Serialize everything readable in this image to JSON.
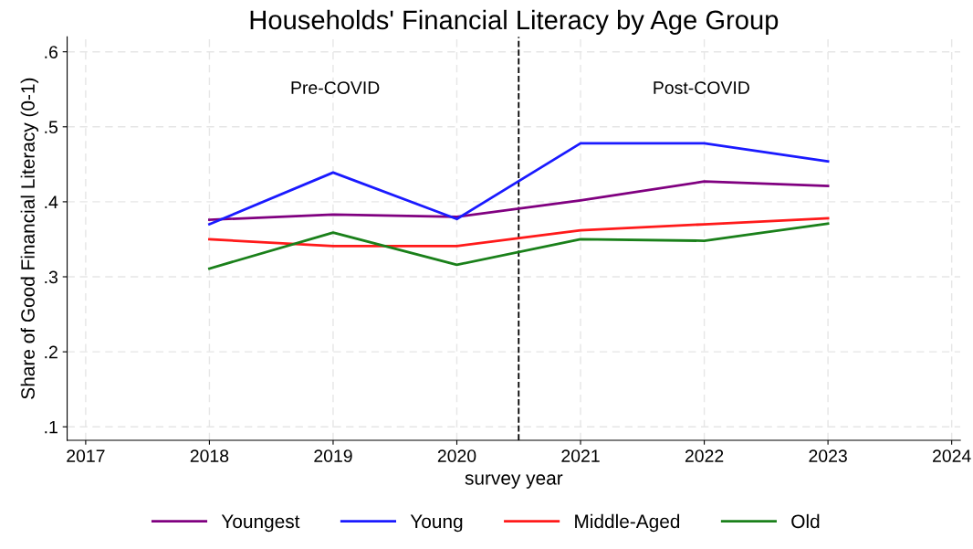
{
  "chart_data": {
    "type": "line",
    "title": "Households' Financial Literacy by Age Group",
    "xlabel": "survey year",
    "ylabel": "Share of Good Financial Literacy (0-1)",
    "x": [
      2018,
      2019,
      2020,
      2021,
      2022,
      2023
    ],
    "series": [
      {
        "name": "Youngest",
        "color": "#800080",
        "values": [
          0.376,
          0.383,
          0.38,
          0.402,
          0.427,
          0.421
        ]
      },
      {
        "name": "Young",
        "color": "#1a1aff",
        "values": [
          0.37,
          0.439,
          0.377,
          0.478,
          0.478,
          0.454
        ]
      },
      {
        "name": "Middle-Aged",
        "color": "#ff1a1a",
        "values": [
          0.35,
          0.341,
          0.341,
          0.362,
          0.37,
          0.378
        ]
      },
      {
        "name": "Old",
        "color": "#1a801a",
        "values": [
          0.311,
          0.359,
          0.316,
          0.35,
          0.348,
          0.371
        ]
      }
    ],
    "xlim": [
      2016.85,
      2024.07
    ],
    "xticks": [
      2017,
      2018,
      2019,
      2020,
      2021,
      2022,
      2023,
      2024
    ],
    "ylim": [
      0.082,
      0.62
    ],
    "yticks": [
      {
        "value": 0.1,
        "label": ".1"
      },
      {
        "value": 0.2,
        "label": ".2"
      },
      {
        "value": 0.3,
        "label": ".3"
      },
      {
        "value": 0.4,
        "label": ".4"
      },
      {
        "value": 0.5,
        "label": ".5"
      },
      {
        "value": 0.6,
        "label": ".6"
      }
    ],
    "ref_lines": [
      {
        "axis": "x",
        "value": 2020.5,
        "color": "#000000",
        "line_style": "dashed"
      }
    ],
    "annotations": [
      "Pre-COVID",
      "Post-COVID"
    ],
    "grid": true,
    "legend": "bottom",
    "marker": "none",
    "line_style": "solid"
  }
}
